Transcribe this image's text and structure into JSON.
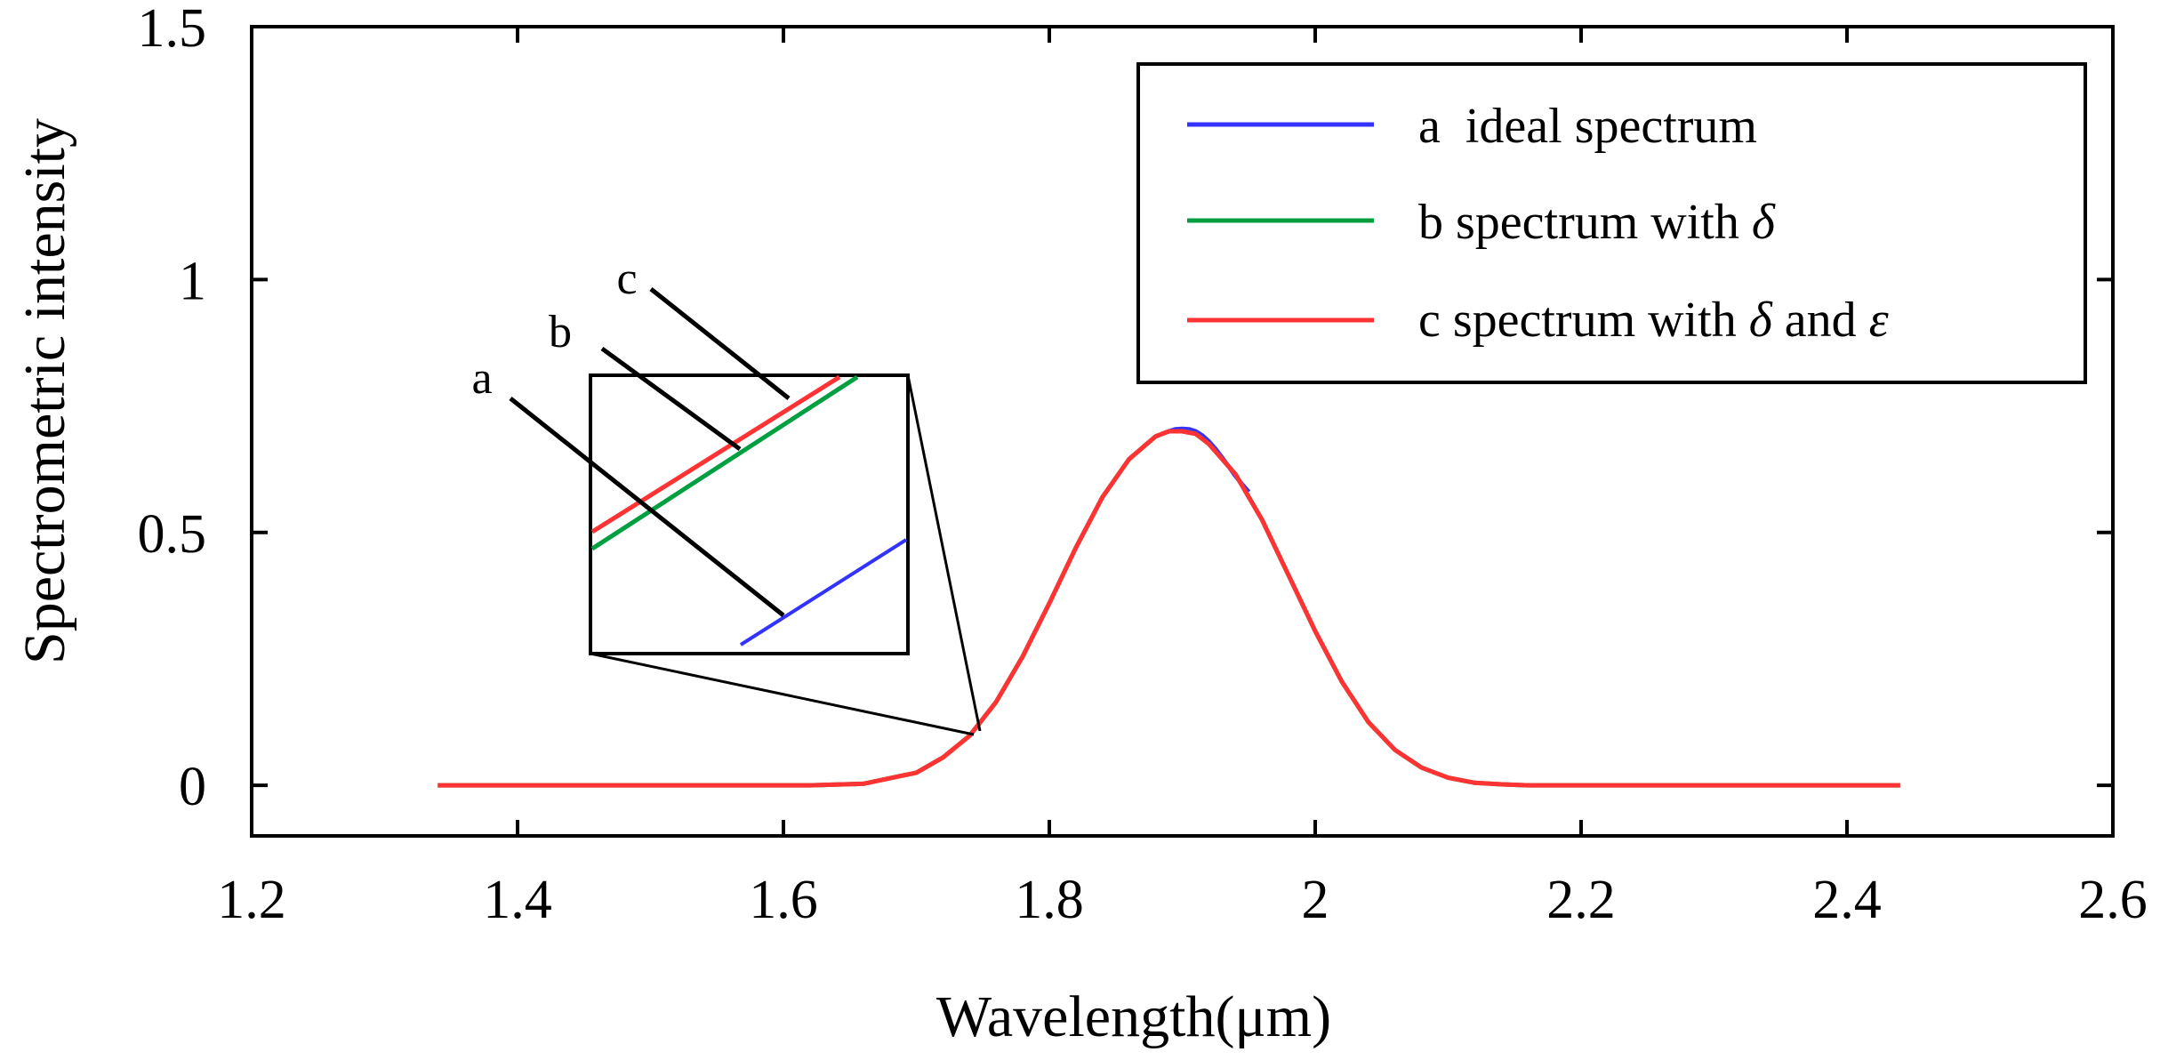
{
  "chart_data": {
    "type": "line",
    "xlabel": "Wavelength(μm)",
    "ylabel": "Spectrometric intensity",
    "xlim": [
      1.2,
      2.6
    ],
    "ylim": [
      -0.1,
      1.5
    ],
    "x_ticks": [
      1.2,
      1.4,
      1.6,
      1.8,
      2.0,
      2.2,
      2.4,
      2.6
    ],
    "x_tick_labels": [
      "1.2",
      "1.4",
      "1.6",
      "1.8",
      "2",
      "2.2",
      "2.4",
      "2.6"
    ],
    "y_ticks": [
      0,
      0.5,
      1,
      1.5
    ],
    "y_tick_labels": [
      "0",
      "0.5",
      "1",
      "1.5"
    ],
    "grid": false,
    "legend_position": "top-right",
    "series": [
      {
        "name": "a ideal spectrum",
        "letter": "a",
        "text": "ideal spectrum",
        "math_parts": [],
        "color": "#3333ff",
        "x": [
          1.885,
          1.89,
          1.895,
          1.9,
          1.905,
          1.91,
          1.915,
          1.92,
          1.925,
          1.93,
          1.935,
          1.94,
          1.945,
          1.95
        ],
        "y": [
          0.695,
          0.7,
          0.704,
          0.705,
          0.704,
          0.7,
          0.692,
          0.68,
          0.665,
          0.648,
          0.63,
          0.612,
          0.595,
          0.58
        ]
      },
      {
        "name": "b spectrum with δ",
        "letter": "b",
        "text": "spectrum with ",
        "math_parts": [
          "δ"
        ],
        "color": "#00a040",
        "x": [
          1.34,
          1.38,
          1.42,
          1.46,
          1.5,
          1.54,
          1.58,
          1.62,
          1.66,
          1.7,
          1.72,
          1.74,
          1.76,
          1.78,
          1.8,
          1.82,
          1.84,
          1.86,
          1.88,
          1.89,
          1.9,
          1.91,
          1.92,
          1.94,
          1.96,
          1.98,
          2.0,
          2.02,
          2.04,
          2.06,
          2.08,
          2.1,
          2.12,
          2.14,
          2.16,
          2.2,
          2.24,
          2.28,
          2.32,
          2.36,
          2.4,
          2.44
        ],
        "y": [
          0,
          0,
          0,
          0,
          0,
          0,
          0,
          0,
          0.003,
          0.025,
          0.055,
          0.098,
          0.165,
          0.255,
          0.36,
          0.47,
          0.57,
          0.645,
          0.69,
          0.7,
          0.7,
          0.695,
          0.675,
          0.615,
          0.525,
          0.415,
          0.305,
          0.205,
          0.125,
          0.07,
          0.035,
          0.015,
          0.005,
          0.002,
          0,
          0,
          0,
          0,
          0,
          0,
          0,
          0
        ]
      },
      {
        "name": "c spectrum with δ and ε",
        "letter": "c",
        "text": "spectrum with ",
        "math_parts": [
          "δ",
          "and",
          "ε"
        ],
        "color": "#ff3333",
        "x": [
          1.34,
          1.38,
          1.42,
          1.46,
          1.5,
          1.54,
          1.58,
          1.62,
          1.66,
          1.7,
          1.72,
          1.74,
          1.76,
          1.78,
          1.8,
          1.82,
          1.84,
          1.86,
          1.88,
          1.89,
          1.9,
          1.91,
          1.92,
          1.94,
          1.96,
          1.98,
          2.0,
          2.02,
          2.04,
          2.06,
          2.08,
          2.1,
          2.12,
          2.14,
          2.16,
          2.2,
          2.24,
          2.28,
          2.32,
          2.36,
          2.4,
          2.44
        ],
        "y": [
          0,
          0,
          0,
          0,
          0,
          0,
          0,
          0,
          0.003,
          0.025,
          0.055,
          0.098,
          0.165,
          0.255,
          0.36,
          0.47,
          0.57,
          0.645,
          0.69,
          0.7,
          0.7,
          0.695,
          0.675,
          0.615,
          0.525,
          0.415,
          0.305,
          0.205,
          0.125,
          0.07,
          0.035,
          0.015,
          0.005,
          0.002,
          0,
          0,
          0,
          0,
          0,
          0,
          0,
          0
        ]
      }
    ],
    "inset": {
      "description": "magnified view of rising edge near 1.75 μm",
      "anchor_x": 1.75,
      "anchor_y": 0.098,
      "labels": [
        "a",
        "b",
        "c"
      ]
    }
  },
  "colors": {
    "axes": "#000000",
    "background": "#ffffff"
  }
}
